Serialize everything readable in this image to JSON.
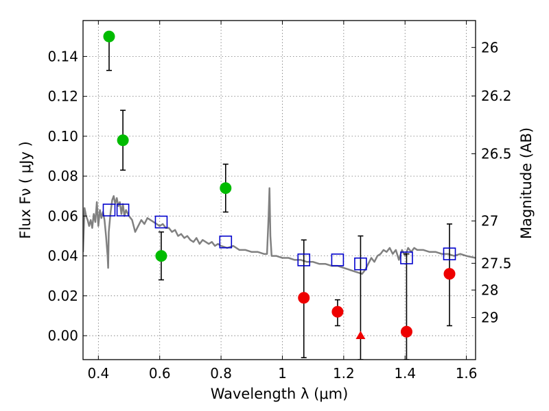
{
  "chart_data": {
    "type": "scatter",
    "xlabel": "Wavelength  λ (μm)",
    "ylabel": "Flux  Fν  ( μJy )",
    "y2label": "Magnitude (AB)",
    "xlim": [
      0.35,
      1.63
    ],
    "ylim": [
      -0.012,
      0.158
    ],
    "xticks": [
      0.4,
      0.6,
      0.8,
      1.0,
      1.2,
      1.4,
      1.6
    ],
    "xtick_labels": [
      "0.4",
      "0.6",
      "0.8",
      "1",
      "1.2",
      "1.4",
      "1.6"
    ],
    "yticks": [
      0.0,
      0.02,
      0.04,
      0.06,
      0.08,
      0.1,
      0.12,
      0.14
    ],
    "ytick_labels": [
      "0.00",
      "0.02",
      "0.04",
      "0.06",
      "0.08",
      "0.10",
      "0.12",
      "0.14"
    ],
    "y2ticks": [
      {
        "label": "26",
        "flux": 0.1445
      },
      {
        "label": "26.2",
        "flux": 0.1202
      },
      {
        "label": "26.5",
        "flux": 0.0912
      },
      {
        "label": "27",
        "flux": 0.0575
      },
      {
        "label": "27.5",
        "flux": 0.0363
      },
      {
        "label": "28",
        "flux": 0.0229
      },
      {
        "label": "29",
        "flux": 0.0091
      }
    ],
    "grid": true,
    "colors": {
      "green": "#00bb00",
      "red": "#ee0000",
      "blue": "#0000cc",
      "model": "#808080",
      "errorbar": "#000000"
    },
    "model_spectrum": [
      [
        0.35,
        0.042
      ],
      [
        0.355,
        0.064
      ],
      [
        0.36,
        0.06
      ],
      [
        0.365,
        0.058
      ],
      [
        0.37,
        0.055
      ],
      [
        0.375,
        0.058
      ],
      [
        0.38,
        0.054
      ],
      [
        0.385,
        0.061
      ],
      [
        0.39,
        0.057
      ],
      [
        0.395,
        0.067
      ],
      [
        0.4,
        0.055
      ],
      [
        0.405,
        0.063
      ],
      [
        0.41,
        0.059
      ],
      [
        0.415,
        0.062
      ],
      [
        0.42,
        0.058
      ],
      [
        0.425,
        0.05
      ],
      [
        0.43,
        0.04
      ],
      [
        0.432,
        0.034
      ],
      [
        0.434,
        0.052
      ],
      [
        0.44,
        0.062
      ],
      [
        0.445,
        0.068
      ],
      [
        0.45,
        0.07
      ],
      [
        0.455,
        0.066
      ],
      [
        0.46,
        0.069
      ],
      [
        0.465,
        0.065
      ],
      [
        0.47,
        0.067
      ],
      [
        0.475,
        0.061
      ],
      [
        0.48,
        0.066
      ],
      [
        0.485,
        0.06
      ],
      [
        0.49,
        0.063
      ],
      [
        0.5,
        0.06
      ],
      [
        0.51,
        0.058
      ],
      [
        0.52,
        0.052
      ],
      [
        0.53,
        0.055
      ],
      [
        0.54,
        0.058
      ],
      [
        0.55,
        0.056
      ],
      [
        0.56,
        0.059
      ],
      [
        0.57,
        0.058
      ],
      [
        0.58,
        0.057
      ],
      [
        0.59,
        0.056
      ],
      [
        0.6,
        0.055
      ],
      [
        0.61,
        0.056
      ],
      [
        0.62,
        0.054
      ],
      [
        0.63,
        0.054
      ],
      [
        0.64,
        0.052
      ],
      [
        0.65,
        0.053
      ],
      [
        0.66,
        0.05
      ],
      [
        0.67,
        0.051
      ],
      [
        0.68,
        0.049
      ],
      [
        0.69,
        0.05
      ],
      [
        0.7,
        0.048
      ],
      [
        0.71,
        0.047
      ],
      [
        0.72,
        0.049
      ],
      [
        0.73,
        0.046
      ],
      [
        0.74,
        0.048
      ],
      [
        0.75,
        0.047
      ],
      [
        0.76,
        0.046
      ],
      [
        0.77,
        0.047
      ],
      [
        0.78,
        0.045
      ],
      [
        0.79,
        0.046
      ],
      [
        0.8,
        0.045
      ],
      [
        0.82,
        0.044
      ],
      [
        0.84,
        0.045
      ],
      [
        0.86,
        0.043
      ],
      [
        0.88,
        0.043
      ],
      [
        0.9,
        0.042
      ],
      [
        0.92,
        0.042
      ],
      [
        0.94,
        0.041
      ],
      [
        0.95,
        0.041
      ],
      [
        0.955,
        0.06
      ],
      [
        0.958,
        0.074
      ],
      [
        0.961,
        0.05
      ],
      [
        0.965,
        0.04
      ],
      [
        0.98,
        0.04
      ],
      [
        1.0,
        0.039
      ],
      [
        1.02,
        0.039
      ],
      [
        1.04,
        0.038
      ],
      [
        1.06,
        0.038
      ],
      [
        1.08,
        0.037
      ],
      [
        1.1,
        0.037
      ],
      [
        1.12,
        0.036
      ],
      [
        1.14,
        0.036
      ],
      [
        1.16,
        0.035
      ],
      [
        1.18,
        0.035
      ],
      [
        1.2,
        0.034
      ],
      [
        1.22,
        0.033
      ],
      [
        1.24,
        0.032
      ],
      [
        1.26,
        0.031
      ],
      [
        1.27,
        0.033
      ],
      [
        1.28,
        0.036
      ],
      [
        1.29,
        0.039
      ],
      [
        1.3,
        0.037
      ],
      [
        1.31,
        0.04
      ],
      [
        1.32,
        0.041
      ],
      [
        1.33,
        0.043
      ],
      [
        1.34,
        0.042
      ],
      [
        1.35,
        0.044
      ],
      [
        1.36,
        0.041
      ],
      [
        1.37,
        0.043
      ],
      [
        1.38,
        0.038
      ],
      [
        1.39,
        0.043
      ],
      [
        1.4,
        0.04
      ],
      [
        1.41,
        0.044
      ],
      [
        1.42,
        0.042
      ],
      [
        1.43,
        0.044
      ],
      [
        1.44,
        0.043
      ],
      [
        1.46,
        0.043
      ],
      [
        1.48,
        0.042
      ],
      [
        1.5,
        0.042
      ],
      [
        1.52,
        0.041
      ],
      [
        1.54,
        0.041
      ],
      [
        1.56,
        0.04
      ],
      [
        1.58,
        0.041
      ],
      [
        1.6,
        0.04
      ],
      [
        1.63,
        0.039
      ]
    ],
    "model_photometry": [
      {
        "x": 0.435,
        "y": 0.063
      },
      {
        "x": 0.48,
        "y": 0.063
      },
      {
        "x": 0.605,
        "y": 0.057
      },
      {
        "x": 0.815,
        "y": 0.047
      },
      {
        "x": 1.07,
        "y": 0.038
      },
      {
        "x": 1.18,
        "y": 0.038
      },
      {
        "x": 1.255,
        "y": 0.036
      },
      {
        "x": 1.405,
        "y": 0.039
      },
      {
        "x": 1.545,
        "y": 0.041
      }
    ],
    "green_points": [
      {
        "x": 0.435,
        "y": 0.15,
        "err_lo": 0.133,
        "err_hi": 0.15
      },
      {
        "x": 0.48,
        "y": 0.098,
        "err_lo": 0.083,
        "err_hi": 0.113
      },
      {
        "x": 0.605,
        "y": 0.04,
        "err_lo": 0.028,
        "err_hi": 0.052
      },
      {
        "x": 0.815,
        "y": 0.074,
        "err_lo": 0.062,
        "err_hi": 0.086
      }
    ],
    "red_points": [
      {
        "x": 1.07,
        "y": 0.019,
        "err_lo": -0.011,
        "err_hi": 0.048
      },
      {
        "x": 1.18,
        "y": 0.012,
        "err_lo": 0.005,
        "err_hi": 0.018
      },
      {
        "x": 1.405,
        "y": 0.002,
        "err_lo": -0.012,
        "err_hi": 0.041
      },
      {
        "x": 1.545,
        "y": 0.031,
        "err_lo": 0.005,
        "err_hi": 0.056
      }
    ],
    "red_upper_limits": [
      {
        "x": 1.255,
        "y": 0.0,
        "err_lo": -0.012,
        "err_hi": 0.05
      }
    ]
  }
}
